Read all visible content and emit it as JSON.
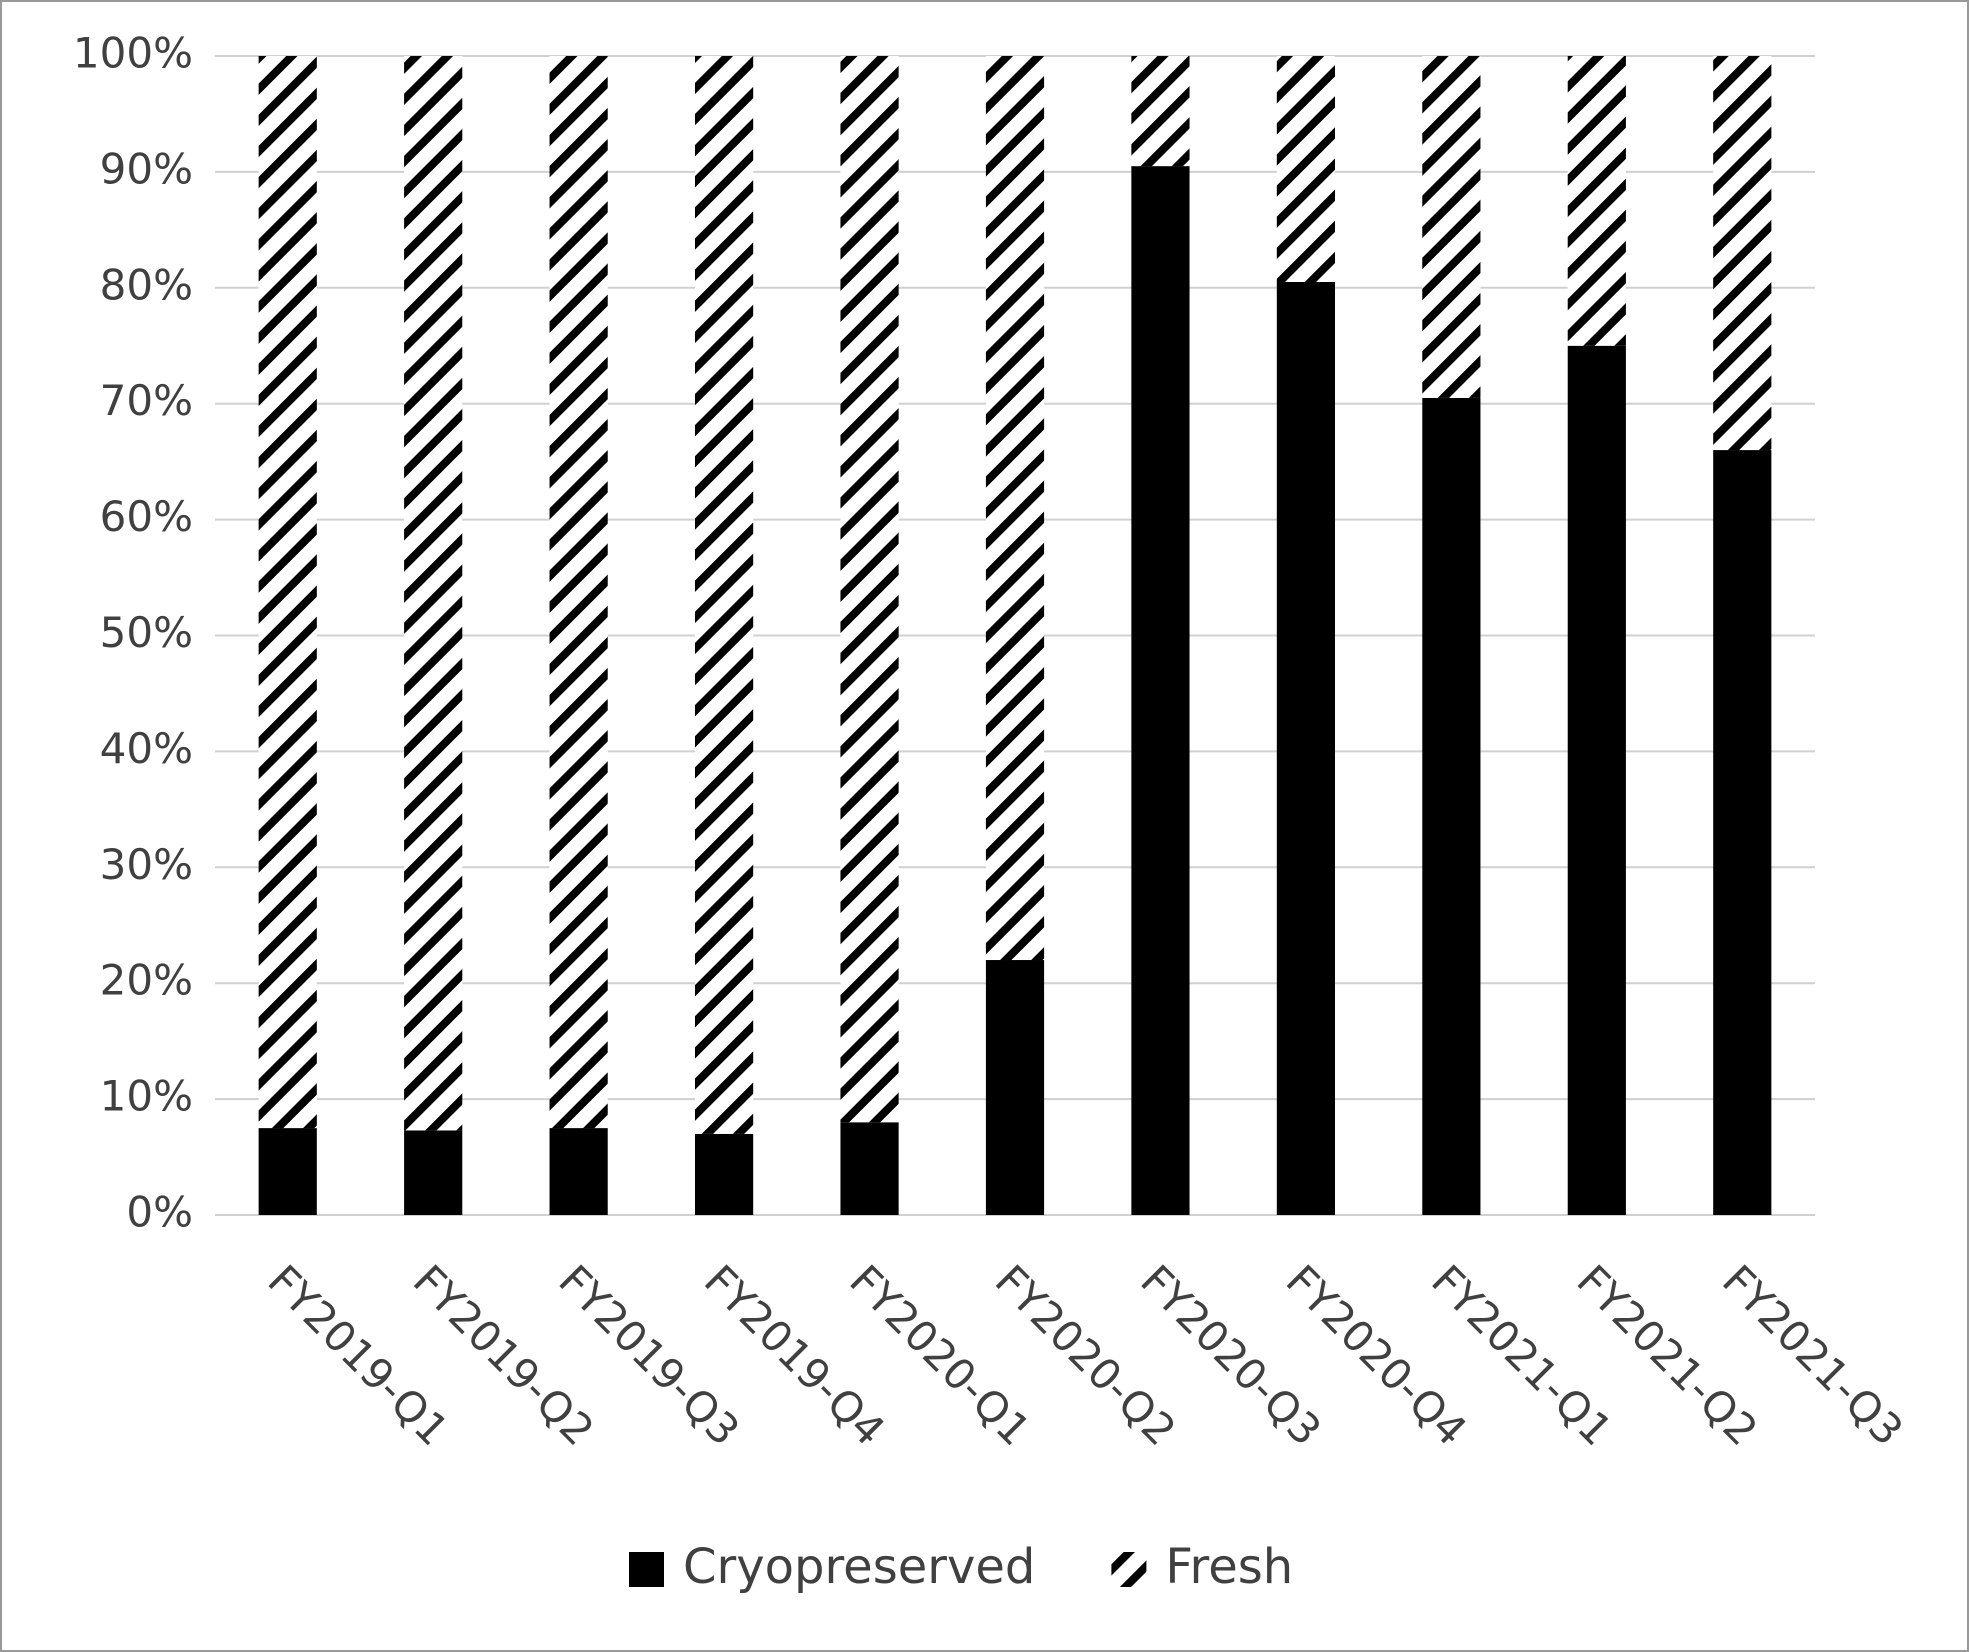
{
  "chart_data": {
    "type": "stacked_bar",
    "categories": [
      "FY2019-Q1",
      "FY2019-Q2",
      "FY2019-Q3",
      "FY2019-Q4",
      "FY2020-Q1",
      "FY2020-Q2",
      "FY2020-Q3",
      "FY2020-Q4",
      "FY2021-Q1",
      "FY2021-Q2",
      "FY2021-Q3"
    ],
    "series": [
      {
        "name": "Cryopreserved",
        "color": "#000000",
        "values": [
          7.5,
          7.3,
          7.5,
          7,
          8,
          22,
          90.5,
          80.5,
          70.5,
          75,
          66
        ]
      },
      {
        "name": "Fresh",
        "color": "#000000",
        "hatch": true,
        "values": [
          92.5,
          92.7,
          92.5,
          93,
          92,
          78,
          9.5,
          19.5,
          29.5,
          25,
          34
        ]
      }
    ],
    "ylim": [
      0,
      100
    ],
    "yticks": [
      {
        "value": 0,
        "label": "0%"
      },
      {
        "value": 10,
        "label": "10%"
      },
      {
        "value": 20,
        "label": "20%"
      },
      {
        "value": 30,
        "label": "30%"
      },
      {
        "value": 40,
        "label": "40%"
      },
      {
        "value": 50,
        "label": "50%"
      },
      {
        "value": 60,
        "label": "60%"
      },
      {
        "value": 70,
        "label": "70%"
      },
      {
        "value": 80,
        "label": "80%"
      },
      {
        "value": 90,
        "label": "90%"
      },
      {
        "value": 100,
        "label": "100%"
      }
    ],
    "grid": true,
    "legend": "bottom"
  }
}
